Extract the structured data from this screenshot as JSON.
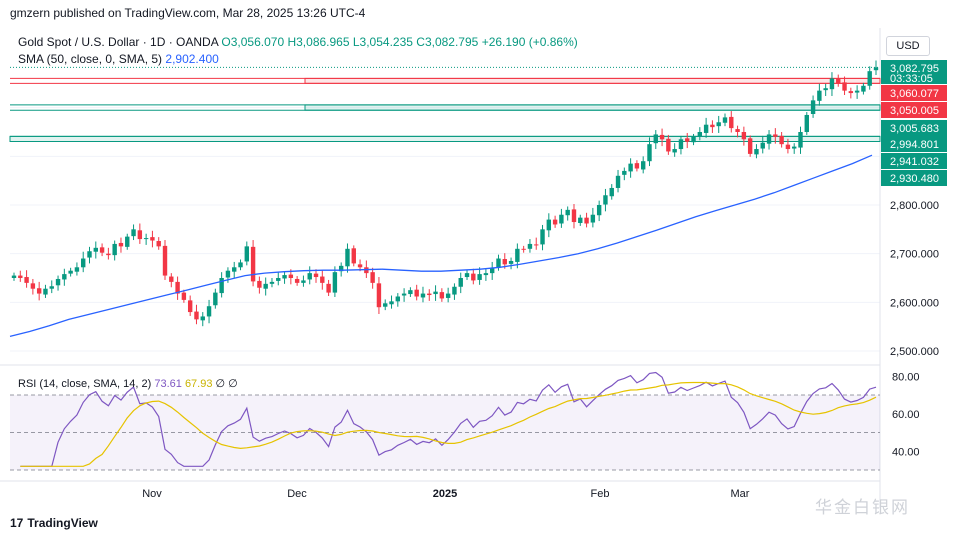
{
  "header": {
    "published": "gmzern published on TradingView.com, Mar 28, 2025 13:26 UTC-4"
  },
  "legend": {
    "symbol": "Gold Spot / U.S. Dollar · 1D · OANDA",
    "open": "O3,056.070",
    "high": "H3,086.965",
    "low": "L3,054.235",
    "close": "C3,082.795",
    "change": "+26.190 (+0.86%)",
    "sma_label": "SMA (50, close, 0, SMA, 5)",
    "sma_value": "2,902.400"
  },
  "rsi_legend": {
    "label": "RSI (14, close, SMA, 14, 2)",
    "rsi": "73.61",
    "rsi_sma": "67.93",
    "extra": "∅ ∅"
  },
  "currency": "USD",
  "footer": {
    "brand": "TradingView",
    "watermark": "华金白银网"
  },
  "colors": {
    "up": "#089981",
    "down": "#f23645",
    "sma": "#2962ff",
    "rsi": "#7e57c2",
    "rsi_sma": "#e6c300",
    "resist": "#f23645",
    "support": "#089981"
  },
  "chart_data": {
    "type": "candlestick",
    "price_range": [
      2500,
      3100
    ],
    "y_ticks": [
      "2,500.000",
      "2,600.000",
      "2,700.000",
      "2,800.000"
    ],
    "price_tags": [
      {
        "text": "3,082.795",
        "sub": "03:33:05",
        "color": "#089981"
      },
      {
        "text": "3,060.077",
        "color": "#f23645"
      },
      {
        "text": "3,050.005",
        "color": "#f23645"
      },
      {
        "text": "3,005.683",
        "color": "#089981"
      },
      {
        "text": "2,994.801",
        "color": "#089981"
      },
      {
        "text": "2,941.032",
        "color": "#089981"
      },
      {
        "text": "2,930.480",
        "color": "#089981"
      }
    ],
    "zones": [
      {
        "kind": "resistance",
        "top": 3060.077,
        "bottom": 3050.005
      },
      {
        "kind": "support",
        "top": 3005.683,
        "bottom": 2994.801
      },
      {
        "kind": "support",
        "top": 2941.032,
        "bottom": 2930.48
      }
    ],
    "x_labels": [
      "Nov",
      "Dec",
      "2025",
      "Feb",
      "Mar"
    ],
    "closes": [
      2655,
      2650,
      2640,
      2628,
      2618,
      2628,
      2633,
      2648,
      2658,
      2665,
      2672,
      2690,
      2705,
      2712,
      2702,
      2697,
      2720,
      2715,
      2735,
      2750,
      2730,
      2732,
      2727,
      2715,
      2655,
      2642,
      2618,
      2605,
      2580,
      2565,
      2571,
      2592,
      2620,
      2650,
      2665,
      2672,
      2682,
      2715,
      2643,
      2630,
      2638,
      2642,
      2650,
      2656,
      2650,
      2640,
      2645,
      2660,
      2652,
      2640,
      2620,
      2662,
      2675,
      2710,
      2680,
      2672,
      2660,
      2640,
      2590,
      2598,
      2602,
      2612,
      2618,
      2625,
      2612,
      2618,
      2615,
      2622,
      2608,
      2618,
      2632,
      2650,
      2660,
      2645,
      2658,
      2660,
      2670,
      2690,
      2678,
      2685,
      2710,
      2708,
      2720,
      2718,
      2750,
      2770,
      2760,
      2780,
      2790,
      2765,
      2774,
      2762,
      2780,
      2800,
      2820,
      2835,
      2860,
      2870,
      2885,
      2875,
      2890,
      2925,
      2945,
      2935,
      2910,
      2915,
      2935,
      2930,
      2940,
      2950,
      2965,
      2960,
      2970,
      2980,
      2958,
      2950,
      2935,
      2905,
      2915,
      2928,
      2945,
      2940,
      2925,
      2915,
      2920,
      2950,
      2985,
      3015,
      3035,
      3040,
      3060,
      3050,
      3035,
      3030,
      3035,
      3045,
      3075,
      3082.795
    ],
    "sma50": [
      2530,
      2540,
      2552,
      2565,
      2575,
      2585,
      2595,
      2605,
      2615,
      2625,
      2635,
      2645,
      2655,
      2660,
      2663,
      2665,
      2666,
      2666,
      2667,
      2668,
      2666,
      2664,
      2664,
      2666,
      2668,
      2672,
      2678,
      2685,
      2692,
      2700,
      2710,
      2722,
      2735,
      2748,
      2762,
      2776,
      2788,
      2800,
      2812,
      2825,
      2840,
      2855,
      2870,
      2885,
      2902.4
    ],
    "rsi": {
      "range": [
        30,
        85
      ],
      "ticks": [
        "80.00",
        "60.00",
        "40.00"
      ],
      "overbought": 70,
      "middle": 50,
      "oversold": 30,
      "last": 73.61,
      "last_sma": 67.93
    }
  }
}
